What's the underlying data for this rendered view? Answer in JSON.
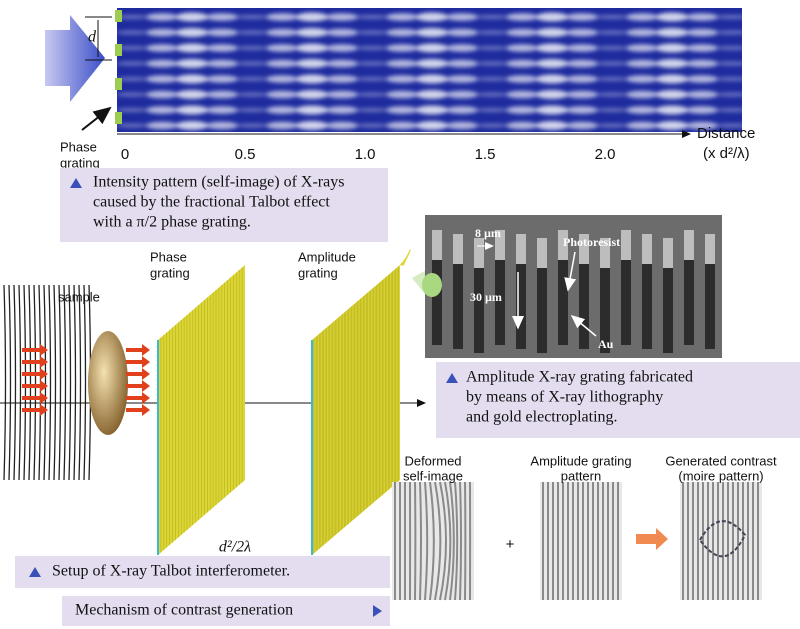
{
  "talbot_pattern": {
    "d_label": "d",
    "grating_label": [
      "Phase",
      "grating"
    ],
    "ticks": [
      "0",
      "0.5",
      "1.0",
      "1.5",
      "2.0"
    ],
    "axis_label": [
      "Distance",
      "(x d²/λ)"
    ],
    "caption": [
      "Intensity pattern (self-image) of X-rays",
      "caused by the fractional Talbot effect",
      "with a π/2 phase grating."
    ]
  },
  "sem_image": {
    "labels": {
      "width": "8 µm",
      "photoresist": "Photoresist",
      "height": "30 µm",
      "gold": "Au"
    },
    "caption": [
      "Amplitude X-ray grating fabricated",
      "by means of X-ray lithography",
      "and gold electroplating."
    ]
  },
  "setup": {
    "sample": "sample",
    "phase_grating": [
      "Phase",
      "grating"
    ],
    "amplitude_grating": [
      "Amplitude",
      "grating"
    ],
    "distance": "d²/2λ",
    "caption": "Setup of X-ray Talbot interferometer."
  },
  "mechanism": {
    "caption": "Mechanism of contrast generation",
    "plus": "+",
    "panels": [
      {
        "label": [
          "Deformed",
          "self-image"
        ]
      },
      {
        "label": [
          "Amplitude grating",
          "pattern"
        ]
      },
      {
        "label": [
          "Generated contrast",
          "(moire pattern)"
        ]
      }
    ]
  }
}
